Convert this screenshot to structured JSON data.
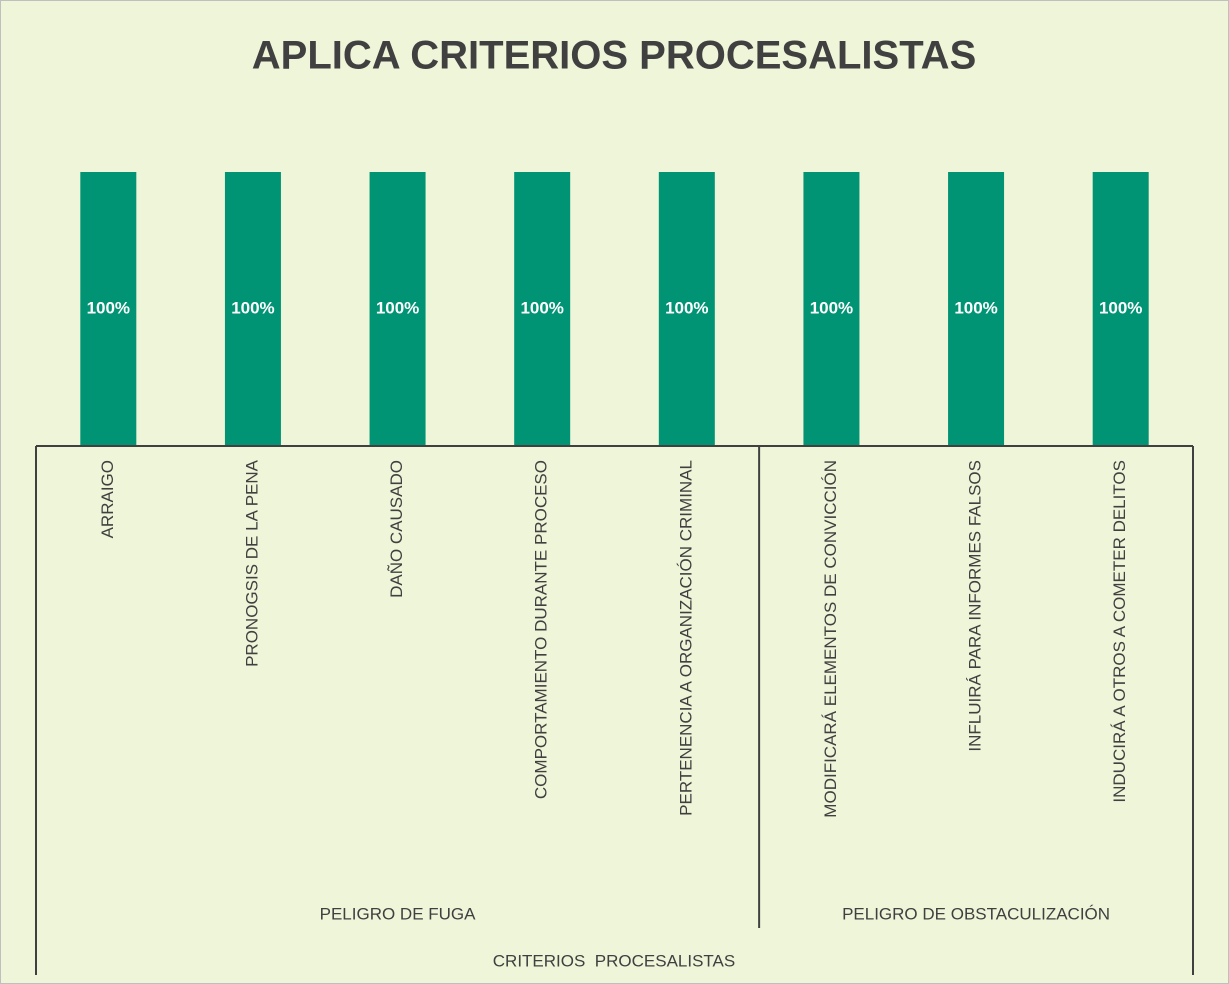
{
  "chart_data": {
    "type": "bar",
    "title": "APLICA CRITERIOS PROCESALISTAS",
    "category_groups": [
      {
        "label": "PELIGRO DE FUGA",
        "categories": [
          "ARRAIGO",
          "PRONOGSIS DE LA PENA",
          "DAÑO CAUSADO",
          "COMPORTAMIENTO DURANTE PROCESO",
          "PERTENENCIA A ORGANIZACIÓN CRIMINAL"
        ]
      },
      {
        "label": "PELIGRO DE OBSTACULIZACIÓN",
        "categories": [
          "MODIFICARÁ ELEMENTOS DE CONVICCIÓN",
          "INFLUIRÁ PARA INFORMES FALSOS",
          "INDUCIRÁ A OTROS A COMETER DELITOS"
        ]
      }
    ],
    "x_label": "CRITERIOS  PROCESALISTAS",
    "values": [
      100,
      100,
      100,
      100,
      100,
      100,
      100,
      100
    ],
    "value_labels": [
      "100%",
      "100%",
      "100%",
      "100%",
      "100%",
      "100%",
      "100%",
      "100%"
    ],
    "color": "#009474",
    "ylim": [
      0,
      100
    ]
  }
}
